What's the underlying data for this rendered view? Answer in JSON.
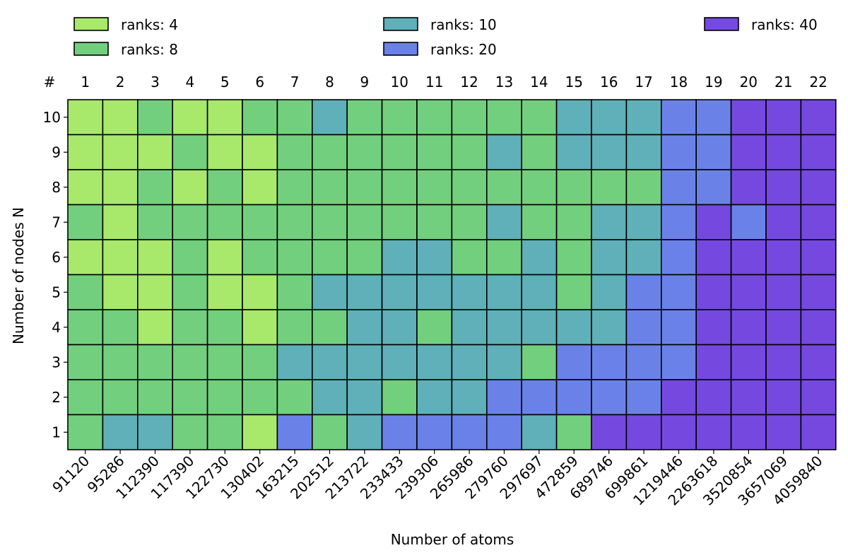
{
  "chart_data": {
    "type": "heatmap",
    "title": "",
    "xlabel": "Number of atoms",
    "ylabel": "Number of nodes N",
    "top_axis_label": "#",
    "top_ticks": [
      "1",
      "2",
      "3",
      "4",
      "5",
      "6",
      "7",
      "8",
      "9",
      "10",
      "11",
      "12",
      "13",
      "14",
      "15",
      "16",
      "17",
      "18",
      "19",
      "20",
      "21",
      "22"
    ],
    "x_categories": [
      "91120",
      "95286",
      "112390",
      "117390",
      "122730",
      "130402",
      "163215",
      "202512",
      "213722",
      "233433",
      "239306",
      "265986",
      "279760",
      "297697",
      "472859",
      "689746",
      "699861",
      "1219446",
      "2263618",
      "3520854",
      "3657069",
      "4059840"
    ],
    "y_categories": [
      "10",
      "9",
      "8",
      "7",
      "6",
      "5",
      "4",
      "3",
      "2",
      "1"
    ],
    "legend": {
      "placement": "top",
      "entries": [
        {
          "key": 4,
          "label": "ranks: 4",
          "color": "#a8e86a"
        },
        {
          "key": 8,
          "label": "ranks: 8",
          "color": "#72cf7e"
        },
        {
          "key": 10,
          "label": "ranks: 10",
          "color": "#5fb0b8"
        },
        {
          "key": 20,
          "label": "ranks: 20",
          "color": "#6a82e8"
        },
        {
          "key": 40,
          "label": "ranks: 40",
          "color": "#7549e0"
        }
      ]
    },
    "grid_values": [
      [
        4,
        4,
        8,
        4,
        4,
        8,
        8,
        10,
        8,
        8,
        8,
        8,
        8,
        8,
        10,
        10,
        10,
        20,
        20,
        40,
        40,
        40
      ],
      [
        4,
        4,
        4,
        8,
        4,
        4,
        8,
        8,
        8,
        8,
        8,
        8,
        10,
        8,
        10,
        10,
        10,
        20,
        20,
        40,
        40,
        40
      ],
      [
        4,
        4,
        8,
        4,
        8,
        4,
        8,
        8,
        8,
        8,
        8,
        8,
        8,
        8,
        8,
        8,
        8,
        20,
        20,
        40,
        40,
        40
      ],
      [
        8,
        4,
        8,
        8,
        8,
        8,
        8,
        8,
        8,
        8,
        8,
        8,
        10,
        8,
        8,
        10,
        10,
        20,
        40,
        20,
        40,
        40
      ],
      [
        4,
        4,
        4,
        8,
        4,
        8,
        8,
        8,
        8,
        10,
        10,
        8,
        8,
        10,
        8,
        10,
        10,
        20,
        40,
        40,
        40,
        40
      ],
      [
        8,
        4,
        4,
        8,
        4,
        4,
        8,
        10,
        10,
        10,
        10,
        10,
        10,
        10,
        8,
        10,
        20,
        20,
        40,
        40,
        40,
        40
      ],
      [
        8,
        8,
        4,
        8,
        8,
        4,
        8,
        8,
        10,
        10,
        8,
        10,
        10,
        10,
        10,
        10,
        20,
        20,
        40,
        40,
        40,
        40
      ],
      [
        8,
        8,
        8,
        8,
        8,
        8,
        10,
        10,
        10,
        10,
        10,
        10,
        10,
        8,
        20,
        20,
        20,
        20,
        40,
        40,
        40,
        40
      ],
      [
        8,
        8,
        8,
        8,
        8,
        8,
        8,
        10,
        10,
        8,
        10,
        10,
        20,
        20,
        20,
        20,
        20,
        40,
        40,
        40,
        40,
        40
      ],
      [
        8,
        10,
        10,
        8,
        8,
        4,
        20,
        8,
        10,
        20,
        20,
        20,
        20,
        10,
        8,
        40,
        40,
        40,
        40,
        40,
        40,
        40
      ]
    ]
  }
}
